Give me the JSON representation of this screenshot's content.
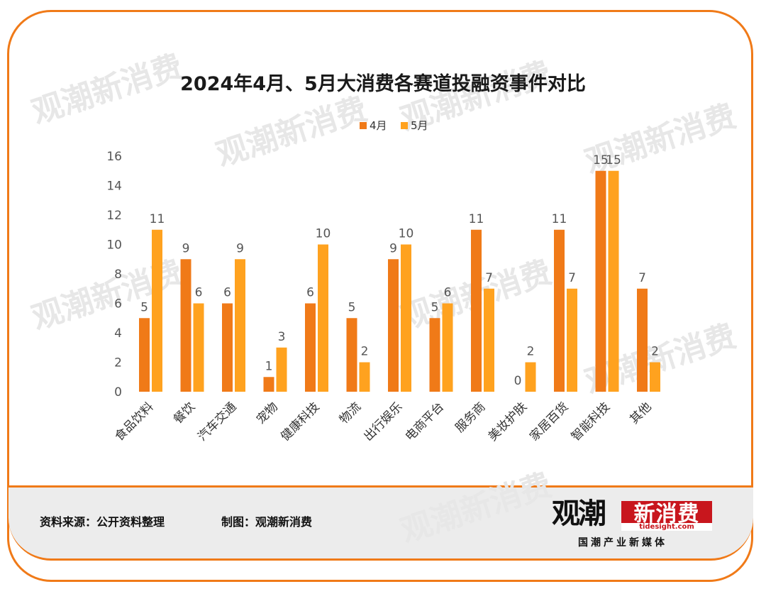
{
  "chart_data": {
    "type": "bar",
    "title": "2024年4月、5月大消费各赛道投融资事件对比",
    "categories": [
      "食品饮料",
      "餐饮",
      "汽车交通",
      "宠物",
      "健康科技",
      "物流",
      "出行娱乐",
      "电商平台",
      "服务商",
      "美妆护肤",
      "家居百货",
      "智能科技",
      "其他"
    ],
    "series": [
      {
        "name": "4月",
        "color": "#f07a18",
        "values": [
          5,
          9,
          6,
          1,
          6,
          5,
          9,
          5,
          11,
          0,
          11,
          15,
          7
        ]
      },
      {
        "name": "5月",
        "color": "#ffa21f",
        "values": [
          11,
          6,
          9,
          3,
          10,
          2,
          10,
          6,
          7,
          2,
          7,
          15,
          2
        ]
      }
    ],
    "ylim": [
      0,
      16
    ],
    "yticks": [
      "0",
      "2",
      "4",
      "6",
      "8",
      "10",
      "12",
      "14",
      "16"
    ],
    "legend_position": "top",
    "grid": false
  },
  "footer": {
    "source": "资料来源：公开资料整理",
    "credit": "制图：观潮新消费"
  },
  "logo": {
    "name_left": "观潮",
    "name_right": "新消费",
    "url": "tidesight.com",
    "tagline": "国潮产业新媒体"
  },
  "watermark": {
    "text": "观潮新消费"
  }
}
